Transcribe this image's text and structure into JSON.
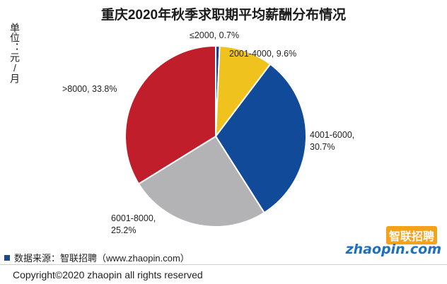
{
  "title": "重庆2020年秋季求职期平均薪酬分布情况",
  "unit_label": "单位：元/月",
  "source_text": "数据来源：智联招聘（www.zhaopin.com）",
  "copyright": "Copyright©2020 zhaopin all rights reserved",
  "logo": {
    "cn": "智联招聘",
    "en": "zhaopin.com"
  },
  "colors": {
    "source_square": "#1a4a8c",
    "logo_cn_bg": "#f4a21a",
    "logo_en": "#1f6fbf"
  },
  "chart_data": {
    "type": "pie",
    "title": "重庆2020年秋季求职期平均薪酬分布情况",
    "unit": "元/月",
    "slices": [
      {
        "label": "≤2000",
        "value": 0.7,
        "display": "≤2000, 0.7%",
        "color": "#1f3f8c"
      },
      {
        "label": "2001-4000",
        "value": 9.6,
        "display": "2001-4000, 9.6%",
        "color": "#efc21e"
      },
      {
        "label": "4001-6000",
        "value": 30.7,
        "display": "4001-6000,|30.7%",
        "color": "#114a99"
      },
      {
        "label": "6001-8000",
        "value": 25.2,
        "display": "6001-8000,|25.2%",
        "color": "#b3b3b5"
      },
      {
        "label": ">8000",
        "value": 33.8,
        "display": ">8000, 33.8%",
        "color": "#bf1e2a"
      }
    ]
  }
}
